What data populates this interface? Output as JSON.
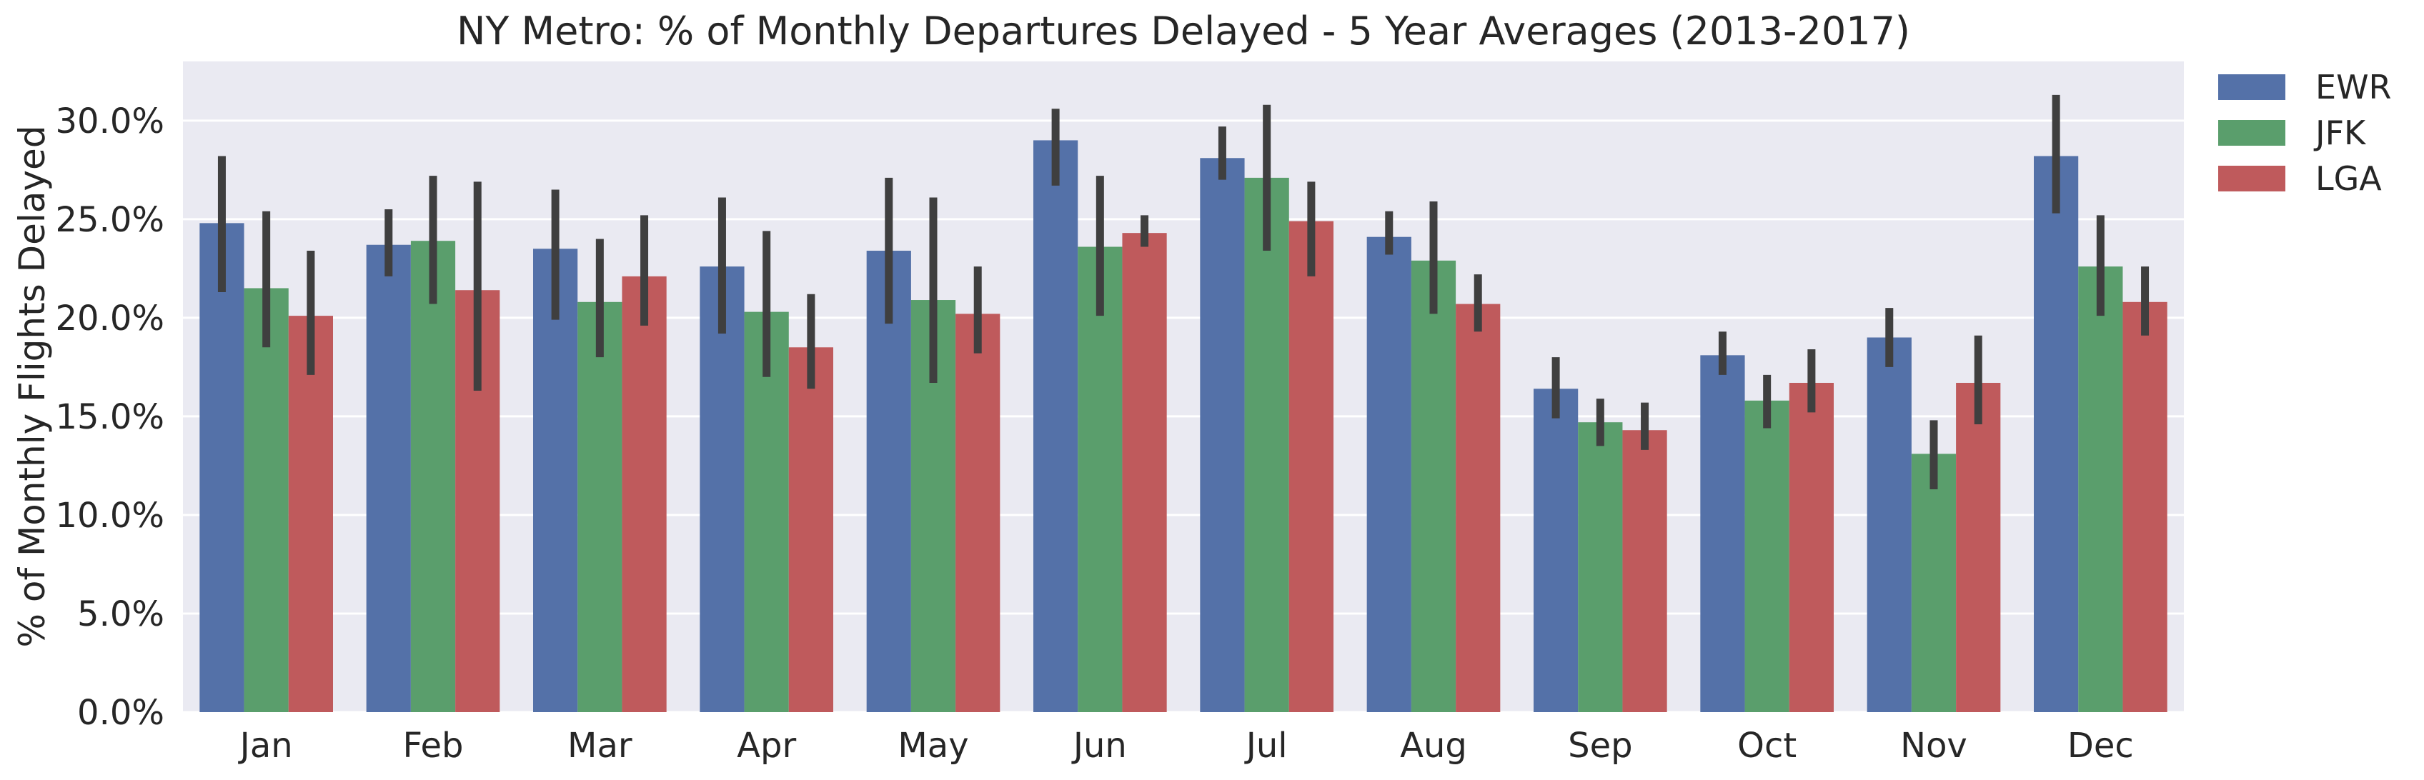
{
  "chart_data": {
    "type": "bar",
    "title": "NY Metro: % of Monthly Departures Delayed - 5 Year Averages (2013-2017)",
    "ylabel": "% of Monthly Flights Delayed",
    "xlabel": "",
    "ylim": [
      0,
      33
    ],
    "yticks": [
      0,
      5,
      10,
      15,
      20,
      25,
      30
    ],
    "ytick_labels": [
      "0.0%",
      "5.0%",
      "10.0%",
      "15.0%",
      "20.0%",
      "25.0%",
      "30.0%"
    ],
    "grid": true,
    "legend_position": "outside-top-right",
    "categories": [
      "Jan",
      "Feb",
      "Mar",
      "Apr",
      "May",
      "Jun",
      "Jul",
      "Aug",
      "Sep",
      "Oct",
      "Nov",
      "Dec"
    ],
    "series": [
      {
        "name": "EWR",
        "color": "#5471a8",
        "values": [
          24.8,
          23.7,
          23.5,
          22.6,
          23.4,
          29.0,
          28.1,
          24.1,
          16.4,
          18.1,
          19.0,
          28.2
        ],
        "ci_low": [
          21.3,
          22.1,
          19.9,
          19.2,
          19.7,
          26.7,
          27.0,
          23.2,
          14.9,
          17.1,
          17.5,
          25.3
        ],
        "ci_high": [
          28.2,
          25.5,
          26.5,
          26.1,
          27.1,
          30.6,
          29.7,
          25.4,
          18.0,
          19.3,
          20.5,
          31.3
        ]
      },
      {
        "name": "JFK",
        "color": "#5a9e6c",
        "values": [
          21.5,
          23.9,
          20.8,
          20.3,
          20.9,
          23.6,
          27.1,
          22.9,
          14.7,
          15.8,
          13.1,
          22.6
        ],
        "ci_low": [
          18.5,
          20.7,
          18.0,
          17.0,
          16.7,
          20.1,
          23.4,
          20.2,
          13.5,
          14.4,
          11.3,
          20.1
        ],
        "ci_high": [
          25.4,
          27.2,
          24.0,
          24.4,
          26.1,
          27.2,
          30.8,
          25.9,
          15.9,
          17.1,
          14.8,
          25.2
        ]
      },
      {
        "name": "LGA",
        "color": "#bf5a5c",
        "values": [
          20.1,
          21.4,
          22.1,
          18.5,
          20.2,
          24.3,
          24.9,
          20.7,
          14.3,
          16.7,
          16.7,
          20.8
        ],
        "ci_low": [
          17.1,
          16.3,
          19.6,
          16.4,
          18.2,
          23.6,
          22.1,
          19.3,
          13.3,
          15.2,
          14.6,
          19.1
        ],
        "ci_high": [
          23.4,
          26.9,
          25.2,
          21.2,
          22.6,
          25.2,
          26.9,
          22.2,
          15.7,
          18.4,
          19.1,
          22.6
        ]
      }
    ]
  }
}
